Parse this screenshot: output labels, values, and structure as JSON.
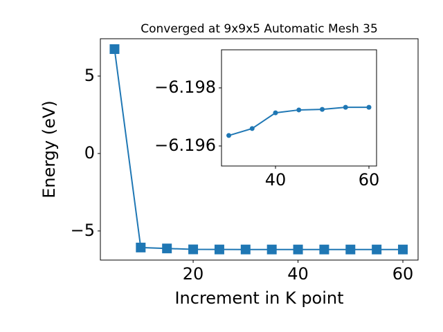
{
  "chart_data": [
    {
      "type": "line",
      "title": "Converged at 9x9x5 Automatic Mesh 35",
      "xlabel": "Increment in K point",
      "ylabel": "Energy (eV)",
      "marker": "square",
      "color": "#1f77b4",
      "x": [
        5,
        10,
        15,
        20,
        25,
        30,
        35,
        40,
        45,
        50,
        55,
        60
      ],
      "series": [
        {
          "values": [
            6.74,
            -6.07,
            -6.13,
            -6.19,
            -6.1955,
            -6.19636,
            -6.1966,
            -6.19714,
            -6.19724,
            -6.19726,
            -6.19733,
            -6.19733
          ]
        }
      ],
      "xlim": [
        2.3,
        62.9
      ],
      "ylim": [
        -6.88,
        7.41
      ],
      "xticks": [
        20,
        40,
        60
      ],
      "yticks": [
        {
          "value": -5,
          "label": "−5"
        },
        0,
        5
      ]
    },
    {
      "type": "line",
      "marker": "circle",
      "color": "#1f77b4",
      "x": [
        30,
        35,
        40,
        45,
        50,
        55,
        60
      ],
      "series": [
        {
          "values": [
            -6.19636,
            -6.1966,
            -6.19714,
            -6.19724,
            -6.19726,
            -6.19733,
            -6.19733
          ]
        }
      ],
      "xlim": [
        28.44,
        61.63
      ],
      "ylim": [
        -6.19531,
        -6.19931
      ],
      "xticks": [
        40,
        60
      ],
      "yticks": [
        {
          "value": -6.198,
          "label": "−6.198"
        },
        {
          "value": -6.196,
          "label": "−6.196"
        }
      ]
    }
  ]
}
